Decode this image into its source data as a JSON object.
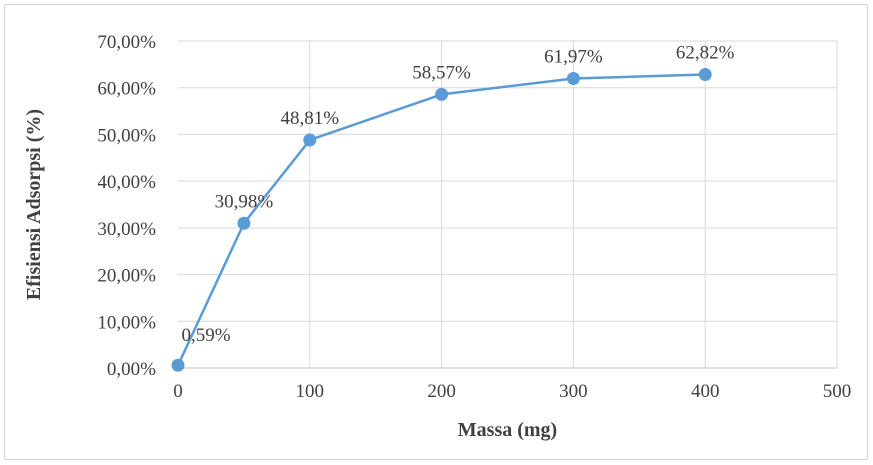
{
  "chart_data": {
    "type": "line",
    "title": "",
    "xlabel": "Massa (mg)",
    "ylabel": "Efisiensi Adsorpsi (%)",
    "xlim": [
      0,
      500
    ],
    "ylim": [
      0,
      70
    ],
    "x_ticks": [
      0,
      100,
      200,
      300,
      400,
      500
    ],
    "x_tick_labels": [
      "0",
      "100",
      "200",
      "300",
      "400",
      "500"
    ],
    "y_ticks": [
      0,
      10,
      20,
      30,
      40,
      50,
      60,
      70
    ],
    "y_tick_labels": [
      "0,00%",
      "10,00%",
      "20,00%",
      "30,00%",
      "40,00%",
      "50,00%",
      "60,00%",
      "70,00%"
    ],
    "grid": true,
    "legend": "none",
    "series": [
      {
        "color": "#5b9bd5",
        "points": [
          {
            "x": 0,
            "y": 0.59,
            "label": "0,59%"
          },
          {
            "x": 50,
            "y": 30.98,
            "label": "30,98%"
          },
          {
            "x": 100,
            "y": 48.81,
            "label": "48,81%"
          },
          {
            "x": 200,
            "y": 58.57,
            "label": "58,57%"
          },
          {
            "x": 300,
            "y": 61.97,
            "label": "61,97%"
          },
          {
            "x": 400,
            "y": 62.82,
            "label": "62,82%"
          }
        ]
      }
    ]
  }
}
